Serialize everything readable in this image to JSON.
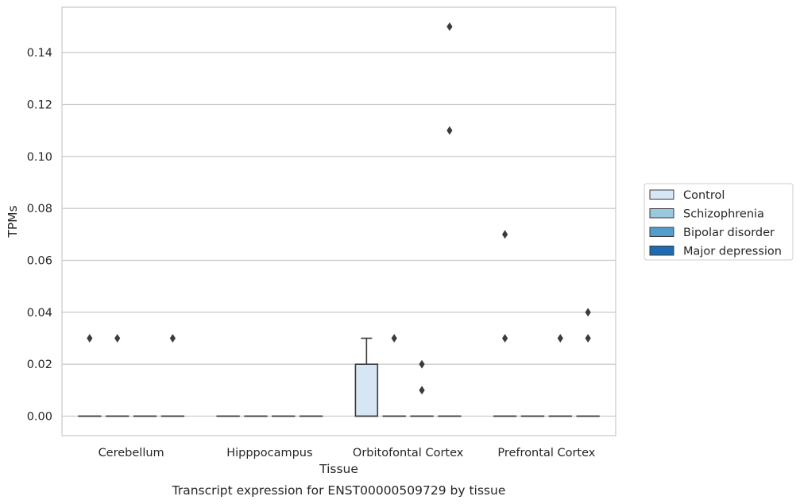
{
  "chart_data": {
    "type": "box",
    "title": "",
    "xlabel": "Tissue",
    "ylabel": "TPMs",
    "caption": "Transcript expression for ENST00000509729 by tissue",
    "ylim": [
      -0.0075,
      0.1575
    ],
    "yticks": [
      0.0,
      0.02,
      0.04,
      0.06,
      0.08,
      0.1,
      0.12,
      0.14
    ],
    "ytick_labels": [
      "0.00",
      "0.02",
      "0.04",
      "0.06",
      "0.08",
      "0.10",
      "0.12",
      "0.14"
    ],
    "grid": true,
    "legend_position": "right",
    "categories": [
      "Cerebellum",
      "Hipppocampus",
      "Orbitofontal Cortex",
      "Prefrontal Cortex"
    ],
    "series": [
      {
        "name": "Control",
        "color": "#d6e6f4",
        "boxes": [
          {
            "q1": 0,
            "median": 0,
            "q3": 0,
            "whisker_low": 0,
            "whisker_high": 0,
            "outliers": [
              0.03
            ]
          },
          {
            "q1": 0,
            "median": 0,
            "q3": 0,
            "whisker_low": 0,
            "whisker_high": 0,
            "outliers": []
          },
          {
            "q1": 0,
            "median": 0,
            "q3": 0.02,
            "whisker_low": 0,
            "whisker_high": 0.03,
            "outliers": []
          },
          {
            "q1": 0,
            "median": 0,
            "q3": 0,
            "whisker_low": 0,
            "whisker_high": 0,
            "outliers": [
              0.07,
              0.03
            ]
          }
        ]
      },
      {
        "name": "Schizophrenia",
        "color": "#9ac8e0",
        "boxes": [
          {
            "q1": 0,
            "median": 0,
            "q3": 0,
            "whisker_low": 0,
            "whisker_high": 0,
            "outliers": [
              0.03
            ]
          },
          {
            "q1": 0,
            "median": 0,
            "q3": 0,
            "whisker_low": 0,
            "whisker_high": 0,
            "outliers": []
          },
          {
            "q1": 0,
            "median": 0,
            "q3": 0,
            "whisker_low": 0,
            "whisker_high": 0,
            "outliers": [
              0.03
            ]
          },
          {
            "q1": 0,
            "median": 0,
            "q3": 0,
            "whisker_low": 0,
            "whisker_high": 0,
            "outliers": []
          }
        ]
      },
      {
        "name": "Bipolar disorder",
        "color": "#529dcc",
        "boxes": [
          {
            "q1": 0,
            "median": 0,
            "q3": 0,
            "whisker_low": 0,
            "whisker_high": 0,
            "outliers": []
          },
          {
            "q1": 0,
            "median": 0,
            "q3": 0,
            "whisker_low": 0,
            "whisker_high": 0,
            "outliers": []
          },
          {
            "q1": 0,
            "median": 0,
            "q3": 0,
            "whisker_low": 0,
            "whisker_high": 0,
            "outliers": [
              0.02,
              0.01
            ]
          },
          {
            "q1": 0,
            "median": 0,
            "q3": 0,
            "whisker_low": 0,
            "whisker_high": 0,
            "outliers": [
              0.03
            ]
          }
        ]
      },
      {
        "name": "Major depression",
        "color": "#1c6cb1",
        "boxes": [
          {
            "q1": 0,
            "median": 0,
            "q3": 0,
            "whisker_low": 0,
            "whisker_high": 0,
            "outliers": [
              0.03
            ]
          },
          {
            "q1": 0,
            "median": 0,
            "q3": 0,
            "whisker_low": 0,
            "whisker_high": 0,
            "outliers": []
          },
          {
            "q1": 0,
            "median": 0,
            "q3": 0,
            "whisker_low": 0,
            "whisker_high": 0,
            "outliers": [
              0.15,
              0.11
            ]
          },
          {
            "q1": 0,
            "median": 0,
            "q3": 0,
            "whisker_low": 0,
            "whisker_high": 0,
            "outliers": [
              0.04,
              0.03
            ]
          }
        ]
      }
    ]
  },
  "style": {
    "grid_color": "#cccccc",
    "frame_color": "#cccccc",
    "line_color": "#3b3b3b",
    "text_color": "#262626"
  }
}
